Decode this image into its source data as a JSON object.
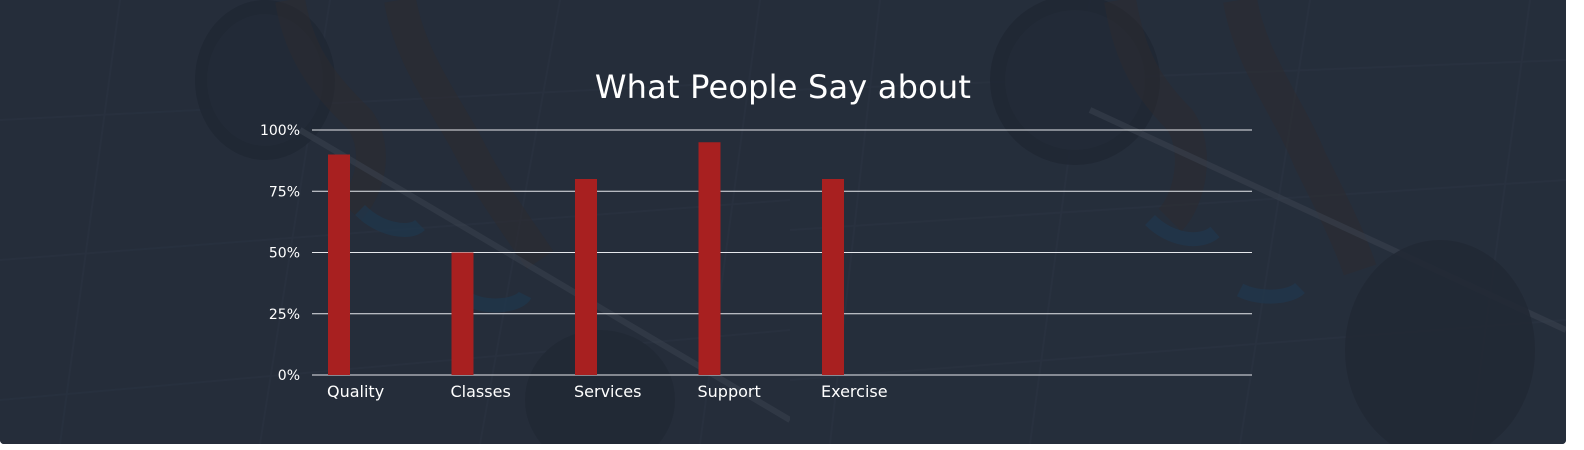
{
  "colors": {
    "bar": "#a82020",
    "grid": "#e6e8ec",
    "text": "#ffffff",
    "background": "#2b3442"
  },
  "background": {
    "image_description_icon": "barbell-deadlift-photo"
  },
  "chart_data": {
    "type": "bar",
    "title": "What People Say about",
    "categories": [
      "Quality",
      "Classes",
      "Services",
      "Support",
      "Exercise"
    ],
    "values": [
      90,
      50,
      80,
      95,
      80
    ],
    "ylim": [
      0,
      100
    ],
    "yticks": [
      0,
      25,
      50,
      75,
      100
    ],
    "ytick_labels": [
      "0%",
      "25%",
      "50%",
      "75%",
      "100%"
    ],
    "grid": true,
    "xlabel": "",
    "ylabel": ""
  }
}
